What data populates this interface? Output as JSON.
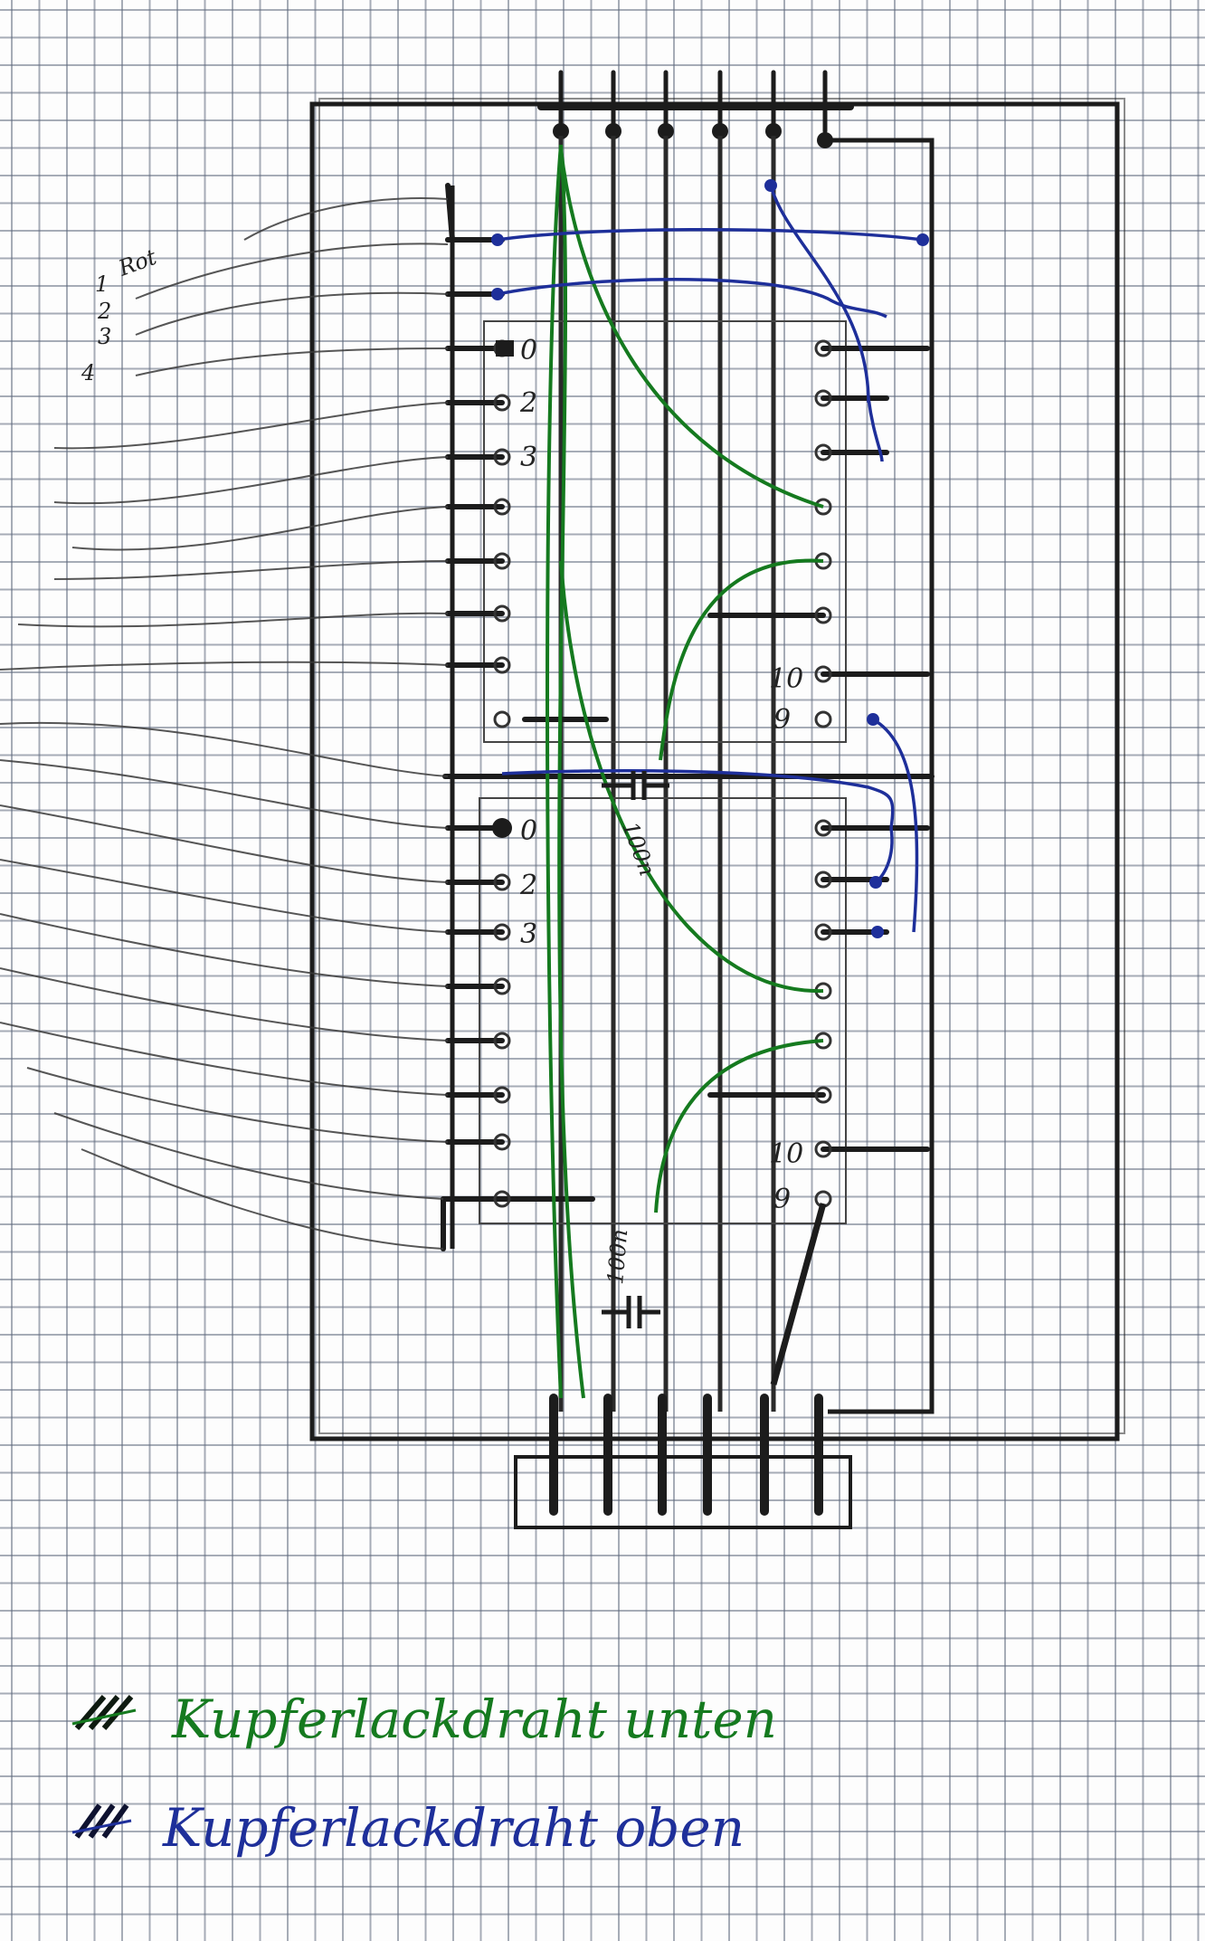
{
  "labels": {
    "rot": "Rot",
    "wire_numbers": [
      "1",
      "2",
      "3",
      "4"
    ],
    "ic_pins": [
      "0",
      "2",
      "3"
    ],
    "ic_pins_right": [
      "10",
      "9"
    ],
    "cap_upper": "100n",
    "cap_lower": "100n"
  },
  "legend": {
    "green_label": "Kupferlackdraht unten",
    "blue_label": "Kupferlackdraht oben"
  },
  "colors": {
    "pencil": "#1c1c1c",
    "green_wire": "#157a1f",
    "blue_wire": "#1e2f9a"
  }
}
